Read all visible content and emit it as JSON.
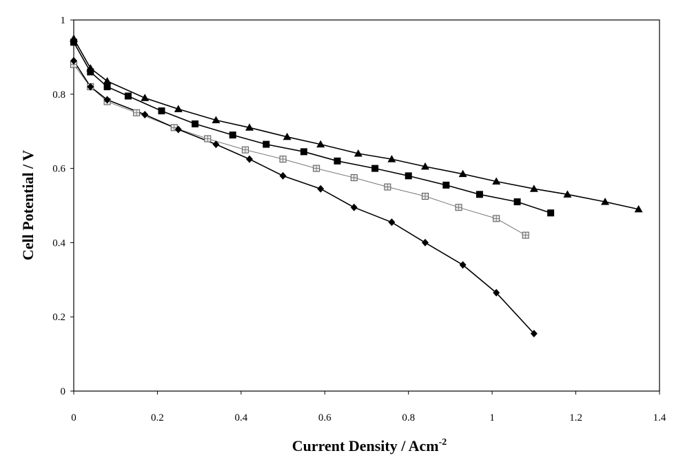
{
  "chart_data": {
    "type": "line",
    "title": "",
    "xlabel": "Current Density / Acm",
    "xlabel_superscript": "-2",
    "ylabel": "Cell Potential / V",
    "xlim": [
      0,
      1.4
    ],
    "ylim": [
      0,
      1
    ],
    "xticks": [
      "0",
      "0.2",
      "0.4",
      "0.6",
      "0.8",
      "1",
      "1.2",
      "1.4"
    ],
    "yticks": [
      "0",
      "0.2",
      "0.4",
      "0.6",
      "0.8",
      "1"
    ],
    "grid": false,
    "legend": "none",
    "series": [
      {
        "marker": "triangle",
        "color": "#000000",
        "x": [
          0.0,
          0.04,
          0.08,
          0.17,
          0.25,
          0.34,
          0.42,
          0.51,
          0.59,
          0.68,
          0.76,
          0.84,
          0.93,
          1.01,
          1.1,
          1.18,
          1.27,
          1.35
        ],
        "y": [
          0.95,
          0.87,
          0.835,
          0.79,
          0.76,
          0.73,
          0.71,
          0.685,
          0.665,
          0.64,
          0.625,
          0.605,
          0.585,
          0.565,
          0.545,
          0.53,
          0.51,
          0.49
        ]
      },
      {
        "marker": "square",
        "color": "#000000",
        "x": [
          0.0,
          0.04,
          0.08,
          0.13,
          0.21,
          0.29,
          0.38,
          0.46,
          0.55,
          0.63,
          0.72,
          0.8,
          0.89,
          0.97,
          1.06,
          1.14
        ],
        "y": [
          0.94,
          0.86,
          0.82,
          0.795,
          0.755,
          0.72,
          0.69,
          0.665,
          0.645,
          0.62,
          0.6,
          0.58,
          0.555,
          0.53,
          0.51,
          0.48
        ]
      },
      {
        "marker": "hatched-square",
        "color": "#777777",
        "x": [
          0.0,
          0.04,
          0.08,
          0.15,
          0.24,
          0.32,
          0.41,
          0.5,
          0.58,
          0.67,
          0.75,
          0.84,
          0.92,
          1.01,
          1.08
        ],
        "y": [
          0.88,
          0.82,
          0.78,
          0.75,
          0.71,
          0.68,
          0.65,
          0.625,
          0.6,
          0.575,
          0.55,
          0.525,
          0.495,
          0.465,
          0.42
        ]
      },
      {
        "marker": "diamond",
        "color": "#000000",
        "x": [
          0.0,
          0.04,
          0.08,
          0.17,
          0.25,
          0.34,
          0.42,
          0.5,
          0.59,
          0.67,
          0.76,
          0.84,
          0.93,
          1.01,
          1.1
        ],
        "y": [
          0.89,
          0.82,
          0.785,
          0.745,
          0.705,
          0.665,
          0.625,
          0.58,
          0.545,
          0.495,
          0.455,
          0.4,
          0.34,
          0.265,
          0.155
        ]
      }
    ]
  }
}
